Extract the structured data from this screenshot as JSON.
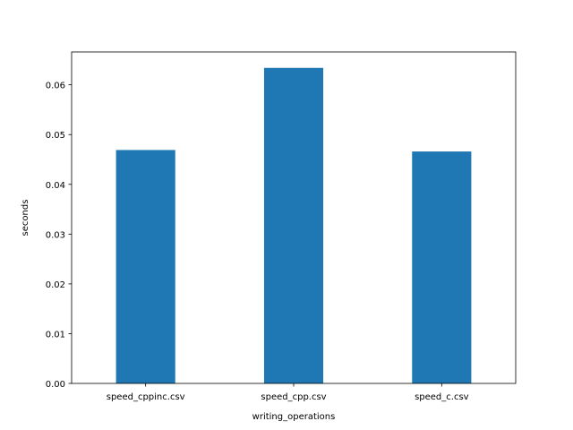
{
  "chart_data": {
    "type": "bar",
    "title": "",
    "xlabel": "writing_operations",
    "ylabel": "seconds",
    "categories": [
      "speed_cppinc.csv",
      "speed_cpp.csv",
      "speed_c.csv"
    ],
    "values": [
      0.0469,
      0.0634,
      0.0466
    ],
    "ylim": [
      0,
      0.0666
    ],
    "yticks": [
      0.0,
      0.01,
      0.02,
      0.03,
      0.04,
      0.05,
      0.06
    ],
    "ytick_labels": [
      "0.00",
      "0.01",
      "0.02",
      "0.03",
      "0.04",
      "0.05",
      "0.06"
    ],
    "grid": false,
    "legend": "none",
    "bar_color": "#1f77b4"
  }
}
